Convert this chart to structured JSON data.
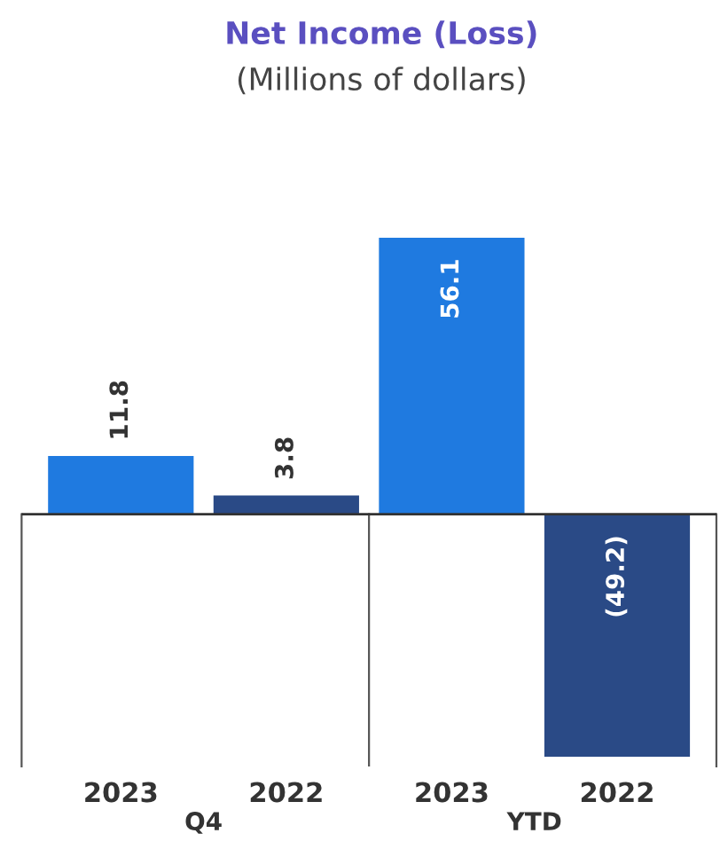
{
  "chart_data": {
    "type": "bar",
    "title": "Net Income (Loss)",
    "subtitle": "(Millions of dollars)",
    "categories": [
      "2023",
      "2022",
      "2023",
      "2022"
    ],
    "values": [
      11.8,
      3.8,
      56.1,
      -49.2
    ],
    "colors": [
      "#1f7ae0",
      "#2a4a86",
      "#1f7ae0",
      "#2a4a86"
    ],
    "value_labels": [
      "11.8",
      "3.8",
      "56.1",
      "(49.2)"
    ],
    "annotations": [
      "Q4",
      "YTD"
    ],
    "legend": false
  }
}
